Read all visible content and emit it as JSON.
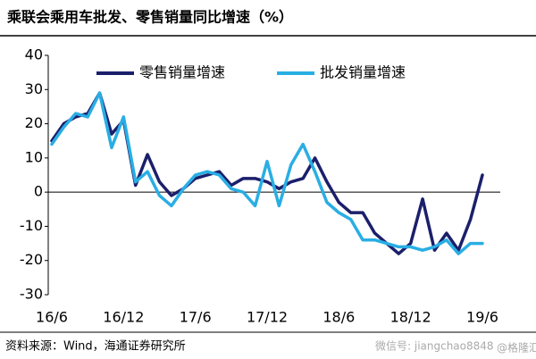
{
  "chart_data": {
    "type": "line",
    "title": "乘联会乘用车批发、零售销量同比增速（%）",
    "source": "资料来源：Wind，海通证券研究所",
    "annotations": [
      "微信号: jiangchao8848",
      "@格隆汇"
    ],
    "categories": [
      "16/6",
      null,
      null,
      null,
      null,
      null,
      "16/12",
      null,
      null,
      null,
      null,
      null,
      "17/6",
      null,
      null,
      null,
      null,
      null,
      "17/12",
      null,
      null,
      null,
      null,
      null,
      "18/6",
      null,
      null,
      null,
      null,
      null,
      "18/12",
      null,
      null,
      null,
      null,
      null,
      "19/6"
    ],
    "series": [
      {
        "name": "零售销量增速",
        "color": "#1b1f6b",
        "values": [
          15,
          20,
          22,
          23,
          29,
          17,
          21,
          2,
          11,
          3,
          -1,
          1,
          4,
          5,
          6,
          2,
          4,
          4,
          3,
          1,
          3,
          4,
          10,
          3,
          -3,
          -6,
          -6,
          -12,
          -15,
          -18,
          -15,
          -2,
          -17,
          -12,
          -17,
          -8,
          5
        ]
      },
      {
        "name": "批发销量增速",
        "color": "#29aee4",
        "values": [
          14,
          19,
          23,
          22,
          29,
          13,
          22,
          3,
          6,
          -1,
          -4,
          1,
          5,
          6,
          5,
          1,
          0,
          -4,
          9,
          -4,
          8,
          14,
          6,
          -3,
          -6,
          -8,
          -14,
          -14,
          -15,
          -16,
          -16,
          -17,
          -16,
          -14,
          -18,
          -15,
          -15
        ]
      }
    ],
    "ylim": [
      -30,
      40
    ],
    "yticks": [
      -30,
      -20,
      -10,
      0,
      10,
      20,
      30,
      40
    ],
    "legend": "top"
  }
}
